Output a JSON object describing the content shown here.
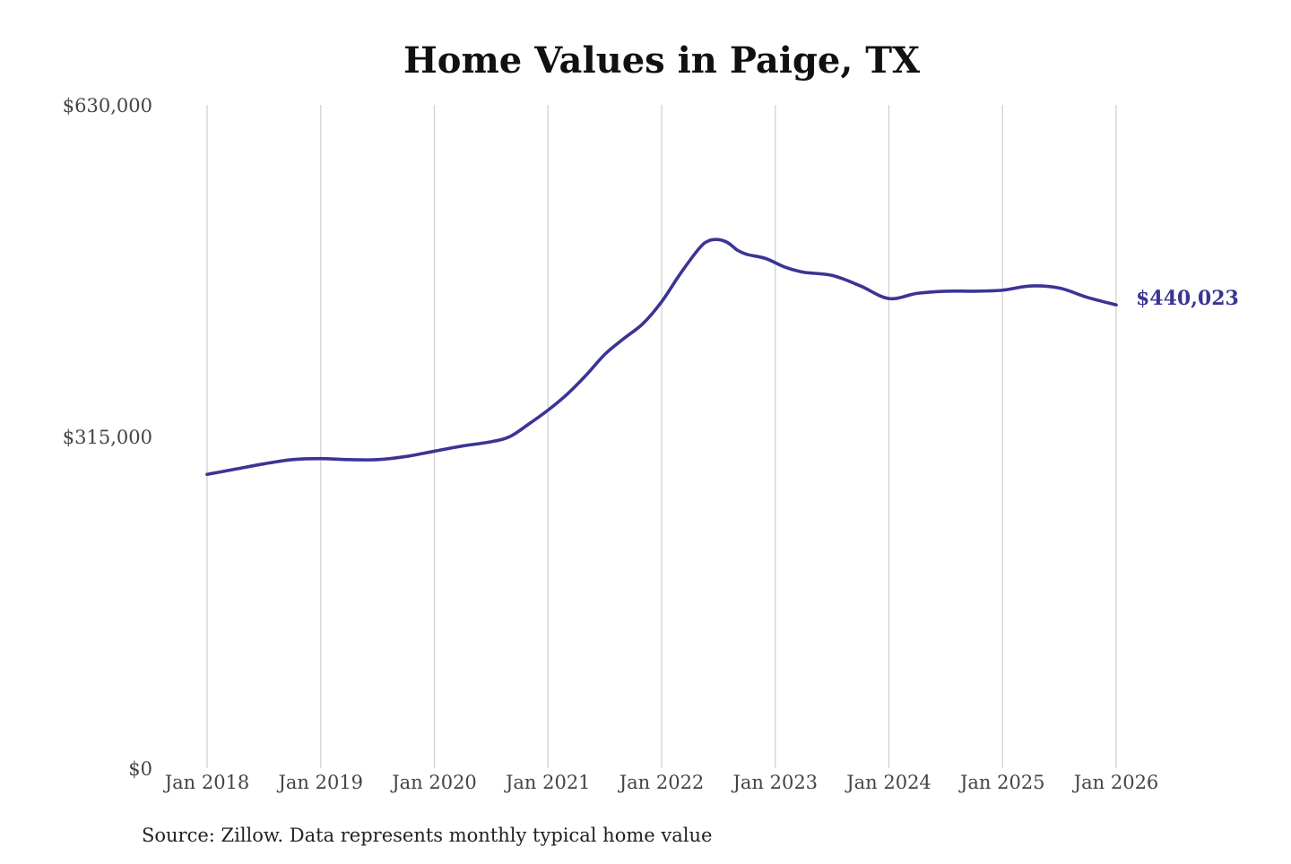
{
  "chart_data": {
    "type": "line",
    "title": "Home Values in Paige, TX",
    "source_note": "Source: Zillow. Data represents monthly typical home value",
    "xlabel": "",
    "ylabel": "",
    "ylim": [
      0,
      630000
    ],
    "y_ticks": [
      {
        "value": 0,
        "label": "$0"
      },
      {
        "value": 315000,
        "label": "$315,000"
      },
      {
        "value": 630000,
        "label": "$630,000"
      }
    ],
    "x_range": [
      "2018-01",
      "2026-01"
    ],
    "x_ticks": [
      {
        "date": "2018-01",
        "label": "Jan 2018"
      },
      {
        "date": "2019-01",
        "label": "Jan 2019"
      },
      {
        "date": "2020-01",
        "label": "Jan 2020"
      },
      {
        "date": "2021-01",
        "label": "Jan 2021"
      },
      {
        "date": "2022-01",
        "label": "Jan 2022"
      },
      {
        "date": "2023-01",
        "label": "Jan 2023"
      },
      {
        "date": "2024-01",
        "label": "Jan 2024"
      },
      {
        "date": "2025-01",
        "label": "Jan 2025"
      },
      {
        "date": "2026-01",
        "label": "Jan 2026"
      }
    ],
    "vertical_gridlines": true,
    "horizontal_gridlines": false,
    "line_color": "#3b3494",
    "end_label": "$440,023",
    "series": [
      {
        "points": [
          [
            "2018-01",
            279000
          ],
          [
            "2018-04",
            284000
          ],
          [
            "2018-07",
            289000
          ],
          [
            "2018-10",
            293000
          ],
          [
            "2019-01",
            294000
          ],
          [
            "2019-04",
            293000
          ],
          [
            "2019-07",
            293000
          ],
          [
            "2019-10",
            296000
          ],
          [
            "2020-01",
            301000
          ],
          [
            "2020-04",
            306000
          ],
          [
            "2020-07",
            310000
          ],
          [
            "2020-09",
            315000
          ],
          [
            "2020-11",
            327000
          ],
          [
            "2021-01",
            340000
          ],
          [
            "2021-03",
            355000
          ],
          [
            "2021-05",
            373000
          ],
          [
            "2021-07",
            393000
          ],
          [
            "2021-09",
            408000
          ],
          [
            "2021-11",
            422000
          ],
          [
            "2022-01",
            443000
          ],
          [
            "2022-03",
            470000
          ],
          [
            "2022-05",
            494000
          ],
          [
            "2022-06",
            501000
          ],
          [
            "2022-07",
            502000
          ],
          [
            "2022-08",
            499000
          ],
          [
            "2022-09",
            492000
          ],
          [
            "2022-10",
            488000
          ],
          [
            "2022-12",
            484000
          ],
          [
            "2023-02",
            476000
          ],
          [
            "2023-04",
            471000
          ],
          [
            "2023-07",
            468000
          ],
          [
            "2023-10",
            458000
          ],
          [
            "2024-01",
            446000
          ],
          [
            "2024-04",
            451000
          ],
          [
            "2024-07",
            453000
          ],
          [
            "2024-10",
            453000
          ],
          [
            "2025-01",
            454000
          ],
          [
            "2025-04",
            458000
          ],
          [
            "2025-07",
            456000
          ],
          [
            "2025-10",
            447000
          ],
          [
            "2026-01",
            440023
          ]
        ]
      }
    ]
  }
}
